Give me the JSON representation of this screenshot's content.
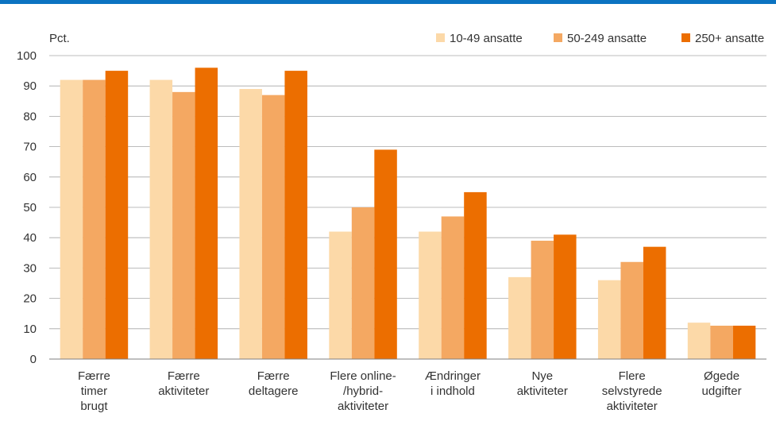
{
  "chart_data": {
    "type": "bar",
    "title": "",
    "ylabel": "Pct.",
    "ylim": [
      0,
      100
    ],
    "yticks": [
      0,
      10,
      20,
      30,
      40,
      50,
      60,
      70,
      80,
      90,
      100
    ],
    "grid": true,
    "legend_position": "top-right",
    "categories": [
      [
        "Færre",
        "timer",
        "brugt"
      ],
      [
        "Færre",
        "aktiviteter"
      ],
      [
        "Færre",
        "deltagere"
      ],
      [
        "Flere online-",
        "/hybrid-",
        "aktiviteter"
      ],
      [
        "Ændringer",
        "i indhold"
      ],
      [
        "Nye",
        "aktiviteter"
      ],
      [
        "Flere",
        "selvstyrede",
        "aktiviteter"
      ],
      [
        "Øgede",
        "udgifter"
      ]
    ],
    "series": [
      {
        "name": "10-49 ansatte",
        "color": "#fcd9a8",
        "values": [
          92,
          92,
          89,
          42,
          42,
          27,
          26,
          12
        ]
      },
      {
        "name": "50-249 ansatte",
        "color": "#f4a862",
        "values": [
          92,
          88,
          87,
          50,
          47,
          39,
          32,
          11
        ]
      },
      {
        "name": "250+ ansatte",
        "color": "#ec6e00",
        "values": [
          95,
          96,
          95,
          69,
          55,
          41,
          37,
          11
        ]
      }
    ]
  }
}
